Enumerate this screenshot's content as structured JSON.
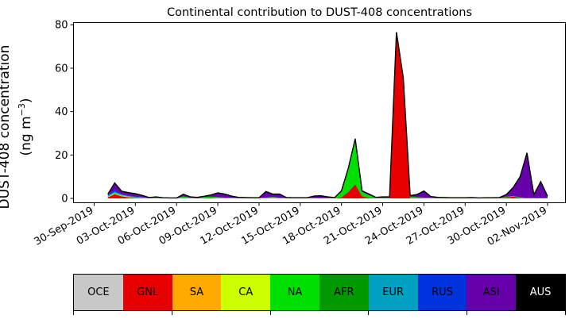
{
  "chart_data": {
    "type": "area",
    "title": "Continental contribution to DUST-408 concentrations",
    "ylabel_line1": "DUST-408 concentration",
    "ylabel_line2": "(ng m",
    "ylabel_sup": "−3",
    "ylabel_close": ")",
    "xlabel": "",
    "ylim": [
      -2,
      81
    ],
    "yticks": [
      0,
      20,
      40,
      60,
      80
    ],
    "xlim_day": [
      -1.5,
      34.3
    ],
    "xticks": [
      {
        "day": 0,
        "label": "30-Sep-2019"
      },
      {
        "day": 3,
        "label": "03-Oct-2019"
      },
      {
        "day": 6,
        "label": "06-Oct-2019"
      },
      {
        "day": 9,
        "label": "09-Oct-2019"
      },
      {
        "day": 12,
        "label": "12-Oct-2019"
      },
      {
        "day": 15,
        "label": "15-Oct-2019"
      },
      {
        "day": 18,
        "label": "18-Oct-2019"
      },
      {
        "day": 21,
        "label": "21-Oct-2019"
      },
      {
        "day": 24,
        "label": "24-Oct-2019"
      },
      {
        "day": 27,
        "label": "27-Oct-2019"
      },
      {
        "day": 30,
        "label": "30-Oct-2019"
      },
      {
        "day": 33,
        "label": "02-Nov-2019"
      }
    ],
    "x": [
      1.0,
      1.5,
      2.0,
      2.5,
      3.0,
      3.5,
      4.0,
      4.5,
      5.0,
      5.5,
      6.0,
      6.5,
      7.0,
      7.5,
      8.0,
      8.5,
      9.0,
      9.5,
      10.0,
      10.5,
      11.0,
      11.5,
      12.0,
      12.5,
      13.0,
      13.5,
      14.0,
      14.5,
      15.0,
      15.5,
      16.0,
      16.5,
      17.0,
      17.5,
      18.0,
      18.5,
      19.0,
      19.5,
      20.0,
      20.5,
      21.0,
      21.5,
      22.0,
      22.5,
      23.0,
      23.5,
      24.0,
      24.5,
      25.0,
      25.5,
      26.0,
      26.5,
      27.0,
      27.5,
      28.0,
      28.5,
      29.0,
      29.5,
      30.0,
      30.5,
      31.0,
      31.5,
      32.0,
      32.5,
      33.0
    ],
    "series": [
      {
        "name": "OCE",
        "color": "#c8c8c8",
        "values": [
          0.0,
          0.0,
          0.0,
          0.0,
          0.0,
          0.0,
          0.0,
          0.0,
          0.0,
          0.0,
          0.0,
          0.0,
          0.0,
          0.0,
          0.0,
          0.0,
          0.0,
          0.0,
          0.0,
          0.0,
          0.0,
          0.0,
          0.0,
          0.0,
          0.0,
          0.0,
          0.0,
          0.0,
          0.0,
          0.0,
          0.0,
          0.0,
          0.0,
          0.0,
          0.0,
          0.0,
          0.0,
          0.0,
          0.0,
          0.0,
          0.0,
          0.0,
          0.0,
          0.0,
          0.0,
          0.0,
          0.0,
          0.0,
          0.0,
          0.0,
          0.0,
          0.0,
          0.0,
          0.0,
          0.0,
          0.0,
          0.0,
          0.0,
          0.0,
          0.0,
          0.0,
          0.0,
          0.0,
          0.0,
          0.0
        ]
      },
      {
        "name": "GNL",
        "color": "#e60000",
        "values": [
          0.5,
          2.0,
          1.0,
          0.5,
          0.3,
          0.2,
          0.1,
          0.1,
          0.1,
          0.1,
          0.1,
          0.1,
          0.1,
          0.2,
          0.3,
          0.2,
          0.1,
          0.1,
          0.1,
          0.1,
          0.1,
          0.1,
          0.1,
          0.1,
          0.1,
          0.1,
          0.1,
          0.1,
          0.1,
          0.1,
          0.1,
          0.1,
          0.1,
          0.1,
          0.5,
          3.0,
          6.5,
          1.0,
          0.3,
          0.1,
          0.2,
          0.3,
          76.0,
          55.0,
          0.3,
          0.3,
          0.1,
          0.1,
          0.1,
          0.1,
          0.1,
          0.1,
          0.1,
          0.1,
          0.1,
          0.1,
          0.1,
          0.1,
          0.5,
          0.8,
          0.3,
          0.2,
          0.1,
          0.1,
          0.1
        ]
      },
      {
        "name": "SA",
        "color": "#ffaa00",
        "values": [
          0.0,
          0.0,
          0.0,
          0.0,
          0.0,
          0.0,
          0.0,
          0.0,
          0.0,
          0.0,
          0.0,
          0.0,
          0.0,
          0.0,
          0.0,
          0.0,
          0.0,
          0.0,
          0.0,
          0.0,
          0.0,
          0.0,
          0.0,
          0.0,
          0.0,
          0.0,
          0.0,
          0.0,
          0.0,
          0.0,
          0.0,
          0.0,
          0.0,
          0.0,
          0.0,
          0.0,
          0.0,
          0.0,
          0.0,
          0.0,
          0.0,
          0.0,
          0.0,
          0.0,
          0.0,
          0.0,
          0.0,
          0.0,
          0.0,
          0.0,
          0.0,
          0.0,
          0.0,
          0.0,
          0.0,
          0.0,
          0.0,
          0.0,
          0.0,
          0.0,
          0.0,
          0.0,
          0.0,
          0.0,
          0.0
        ]
      },
      {
        "name": "CA",
        "color": "#ccff00",
        "values": [
          0.3,
          0.3,
          0.3,
          0.2,
          0.1,
          0.1,
          0.0,
          0.0,
          0.0,
          0.0,
          0.0,
          0.0,
          0.0,
          0.0,
          0.0,
          0.0,
          0.0,
          0.0,
          0.0,
          0.0,
          0.0,
          0.0,
          0.0,
          0.0,
          0.0,
          0.0,
          0.0,
          0.0,
          0.0,
          0.0,
          0.0,
          0.0,
          0.0,
          0.0,
          0.0,
          0.0,
          0.0,
          0.0,
          0.0,
          0.0,
          0.0,
          0.0,
          0.0,
          0.0,
          0.0,
          0.0,
          0.0,
          0.0,
          0.0,
          0.0,
          0.0,
          0.0,
          0.0,
          0.0,
          0.0,
          0.0,
          0.0,
          0.0,
          0.0,
          0.0,
          0.0,
          0.0,
          0.0,
          0.0,
          0.0
        ]
      },
      {
        "name": "NA",
        "color": "#00e000",
        "values": [
          0.2,
          0.3,
          0.2,
          0.2,
          0.1,
          0.1,
          0.1,
          0.3,
          0.2,
          0.1,
          0.1,
          0.8,
          0.3,
          0.1,
          0.4,
          0.6,
          0.5,
          0.3,
          0.2,
          0.1,
          0.1,
          0.1,
          0.1,
          0.3,
          0.6,
          0.2,
          0.1,
          0.1,
          0.1,
          0.1,
          0.1,
          0.1,
          0.1,
          0.2,
          3.0,
          11.0,
          20.5,
          2.0,
          1.2,
          0.3,
          0.2,
          0.3,
          0.3,
          0.2,
          0.5,
          0.3,
          0.3,
          0.2,
          0.1,
          0.1,
          0.1,
          0.1,
          0.1,
          0.1,
          0.1,
          0.1,
          0.1,
          0.1,
          0.3,
          0.3,
          0.2,
          0.1,
          0.1,
          0.1,
          0.1
        ]
      },
      {
        "name": "AFR",
        "color": "#009900",
        "values": [
          0.0,
          0.0,
          0.0,
          0.0,
          0.0,
          0.0,
          0.0,
          0.0,
          0.0,
          0.0,
          0.0,
          0.0,
          0.0,
          0.0,
          0.0,
          0.0,
          0.0,
          0.0,
          0.0,
          0.0,
          0.0,
          0.0,
          0.0,
          0.0,
          0.0,
          0.0,
          0.0,
          0.0,
          0.0,
          0.0,
          0.0,
          0.0,
          0.0,
          0.0,
          0.0,
          0.0,
          0.0,
          0.0,
          0.0,
          0.0,
          0.0,
          0.0,
          0.0,
          0.0,
          0.0,
          0.0,
          0.0,
          0.0,
          0.0,
          0.0,
          0.0,
          0.0,
          0.0,
          0.0,
          0.0,
          0.0,
          0.0,
          0.0,
          0.0,
          0.0,
          0.0,
          0.0,
          0.0,
          0.0,
          0.0
        ]
      },
      {
        "name": "EUR",
        "color": "#00a0c0",
        "values": [
          0.2,
          0.5,
          0.2,
          0.2,
          0.1,
          0.1,
          0.0,
          0.0,
          0.0,
          0.0,
          0.0,
          0.0,
          0.0,
          0.0,
          0.0,
          0.0,
          0.0,
          0.0,
          0.0,
          0.0,
          0.0,
          0.0,
          0.0,
          0.0,
          0.0,
          0.0,
          0.0,
          0.0,
          0.0,
          0.0,
          0.0,
          0.0,
          0.0,
          0.0,
          0.0,
          0.0,
          0.0,
          0.0,
          0.0,
          0.0,
          0.0,
          0.0,
          0.0,
          0.0,
          0.0,
          0.0,
          0.0,
          0.0,
          0.0,
          0.0,
          0.0,
          0.0,
          0.0,
          0.0,
          0.0,
          0.0,
          0.0,
          0.0,
          0.0,
          0.0,
          0.0,
          0.0,
          0.0,
          0.0,
          0.0
        ]
      },
      {
        "name": "RUS",
        "color": "#0033dd",
        "values": [
          0.3,
          1.0,
          0.3,
          0.3,
          0.2,
          0.1,
          0.0,
          0.0,
          0.0,
          0.0,
          0.0,
          0.0,
          0.0,
          0.0,
          0.0,
          0.0,
          0.0,
          0.0,
          0.0,
          0.0,
          0.0,
          0.0,
          0.0,
          0.0,
          0.0,
          0.0,
          0.0,
          0.0,
          0.0,
          0.0,
          0.0,
          0.0,
          0.0,
          0.0,
          0.0,
          0.0,
          0.0,
          0.0,
          0.0,
          0.0,
          0.0,
          0.0,
          0.0,
          0.0,
          0.0,
          0.0,
          0.0,
          0.0,
          0.0,
          0.0,
          0.0,
          0.0,
          0.0,
          0.0,
          0.0,
          0.0,
          0.0,
          0.0,
          0.0,
          0.0,
          0.0,
          0.0,
          0.0,
          0.0,
          0.0
        ]
      },
      {
        "name": "ASI",
        "color": "#6600aa",
        "values": [
          0.5,
          3.0,
          1.3,
          1.3,
          1.4,
          0.8,
          0.2,
          0.3,
          0.0,
          0.0,
          0.0,
          1.0,
          0.3,
          0.2,
          0.3,
          0.8,
          2.0,
          1.6,
          0.8,
          0.3,
          0.2,
          0.1,
          0.1,
          2.8,
          1.3,
          1.7,
          0.2,
          0.1,
          0.1,
          0.1,
          0.9,
          1.0,
          0.5,
          0.1,
          0.0,
          0.0,
          0.5,
          0.5,
          0.5,
          0.1,
          0.3,
          0.1,
          0.3,
          0.3,
          0.5,
          1.2,
          3.0,
          0.6,
          0.3,
          0.2,
          0.1,
          0.1,
          0.1,
          0.2,
          0.0,
          0.1,
          0.1,
          0.2,
          1.0,
          4.0,
          9.5,
          20.7,
          1.5,
          7.5,
          0.8
        ]
      },
      {
        "name": "AUS",
        "color": "#000000",
        "values": [
          0.0,
          0.0,
          0.0,
          0.0,
          0.0,
          0.0,
          0.0,
          0.0,
          0.0,
          0.0,
          0.0,
          0.0,
          0.0,
          0.0,
          0.0,
          0.0,
          0.0,
          0.0,
          0.0,
          0.0,
          0.0,
          0.0,
          0.0,
          0.0,
          0.0,
          0.0,
          0.0,
          0.0,
          0.0,
          0.0,
          0.0,
          0.0,
          0.0,
          0.0,
          0.0,
          0.0,
          0.0,
          0.0,
          0.0,
          0.0,
          0.0,
          0.0,
          0.0,
          0.0,
          0.0,
          0.0,
          0.0,
          0.0,
          0.0,
          0.0,
          0.0,
          0.0,
          0.0,
          0.0,
          0.0,
          0.0,
          0.0,
          0.0,
          0.0,
          0.0,
          0.0,
          0.0,
          0.0,
          0.0,
          0.0
        ]
      }
    ],
    "legend": [
      {
        "label": "OCE",
        "color": "#c8c8c8",
        "text_color": "#000000"
      },
      {
        "label": "GNL",
        "color": "#e60000",
        "text_color": "#000000"
      },
      {
        "label": "SA",
        "color": "#ffaa00",
        "text_color": "#000000"
      },
      {
        "label": "CA",
        "color": "#ccff00",
        "text_color": "#000000"
      },
      {
        "label": "NA",
        "color": "#00e000",
        "text_color": "#000000"
      },
      {
        "label": "AFR",
        "color": "#009900",
        "text_color": "#000000"
      },
      {
        "label": "EUR",
        "color": "#00a0c0",
        "text_color": "#000000"
      },
      {
        "label": "RUS",
        "color": "#0033dd",
        "text_color": "#000000"
      },
      {
        "label": "ASI",
        "color": "#6600aa",
        "text_color": "#000000"
      },
      {
        "label": "AUS",
        "color": "#000000",
        "text_color": "#ffffff"
      }
    ],
    "legend_placement": "bottom",
    "grid": false
  }
}
